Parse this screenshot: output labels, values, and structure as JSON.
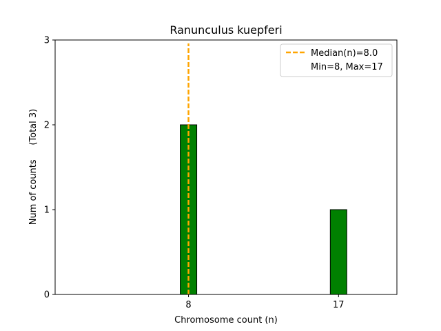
{
  "chart_data": {
    "type": "bar",
    "title": "Ranunculus kuepferi",
    "xlabel": "Chromosome count (n)",
    "ylabel": "Num of counts     (Total 3)",
    "categories": [
      8,
      17
    ],
    "values": [
      2,
      1
    ],
    "xlim": [
      0,
      20.5
    ],
    "ylim": [
      0,
      3
    ],
    "xticks": [
      "8",
      "17"
    ],
    "yticks": [
      "0",
      "1",
      "2",
      "3"
    ],
    "grid": false,
    "bar_color": "#008000",
    "bar_edge_color": "#000000",
    "median_line": {
      "x": 8.0,
      "color": "#ffa500",
      "style": "dashed"
    },
    "legend": {
      "placement": "top-right",
      "entries": [
        {
          "label": "Median(n)=8.0",
          "marker": "dashed-line",
          "color": "#ffa500"
        },
        {
          "label": "Min=8, Max=17",
          "marker": "none"
        }
      ]
    }
  }
}
